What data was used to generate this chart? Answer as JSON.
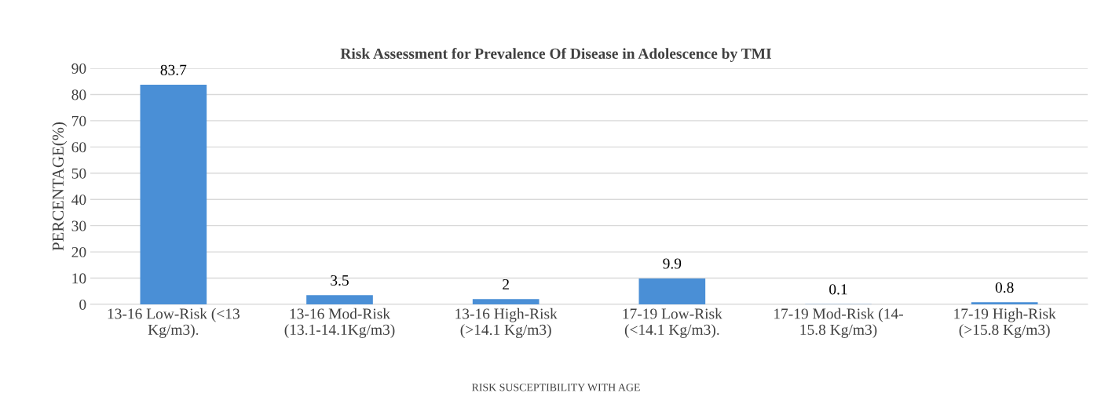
{
  "chart_data": {
    "type": "bar",
    "title": "Risk Assessment for Prevalence Of Disease in Adolescence by TMI",
    "xlabel": "RISK SUSCEPTIBILITY WITH AGE",
    "ylabel": "PERCENTAGE(%)",
    "categories": [
      "13-16 Low-Risk (<13\nKg/m3).",
      "13-16 Mod-Risk\n(13.1-14.1Kg/m3)",
      "13-16 High-Risk\n(>14.1 Kg/m3)",
      "17-19 Low-Risk\n(<14.1 Kg/m3).",
      "17-19 Mod-Risk (14-\n15.8 Kg/m3)",
      "17-19 High-Risk\n(>15.8 Kg/m3)"
    ],
    "values": [
      83.7,
      3.5,
      2,
      9.9,
      0.1,
      0.8
    ],
    "color": "#4a8fd6",
    "ylim": [
      0,
      90
    ],
    "yticks": [
      0,
      10,
      20,
      30,
      40,
      50,
      60,
      70,
      80,
      90
    ],
    "grid": "y",
    "data_labels": true
  }
}
